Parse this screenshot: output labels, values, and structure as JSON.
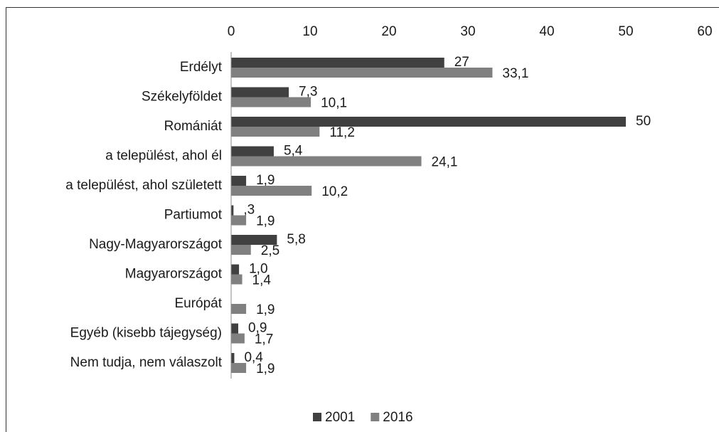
{
  "chart_data": {
    "type": "bar",
    "orientation": "horizontal",
    "categories": [
      "Erdélyt",
      "Székelyföldet",
      "Romániát",
      "a települést, ahol él",
      "a települést, ahol született",
      "Partiumot",
      "Nagy-Magyarországot",
      "Magyarországot",
      "Európát",
      "Egyéb (kisebb tájegység)",
      "Nem tudja, nem válaszolt"
    ],
    "series": [
      {
        "name": "2001",
        "color": "#404040",
        "values": [
          27,
          7.3,
          50,
          5.4,
          1.9,
          0.3,
          5.8,
          1.0,
          null,
          0.9,
          0.4
        ],
        "value_labels": [
          "27",
          "7,3",
          "50",
          "5,4",
          "1,9",
          ",3",
          "5,8",
          "1,0",
          null,
          "0,9",
          "0,4"
        ]
      },
      {
        "name": "2016",
        "color": "#808080",
        "values": [
          33.1,
          10.1,
          11.2,
          24.1,
          10.2,
          1.9,
          2.5,
          1.4,
          1.9,
          1.7,
          1.9
        ],
        "value_labels": [
          "33,1",
          "10,1",
          "11,2",
          "24,1",
          "10,2",
          "1,9",
          "2,5",
          "1,4",
          "1,9",
          "1,7",
          "1,9"
        ]
      }
    ],
    "xlim": [
      0,
      60
    ],
    "xticks": [
      0,
      10,
      20,
      30,
      40,
      50,
      60
    ],
    "legend": "bottom"
  }
}
